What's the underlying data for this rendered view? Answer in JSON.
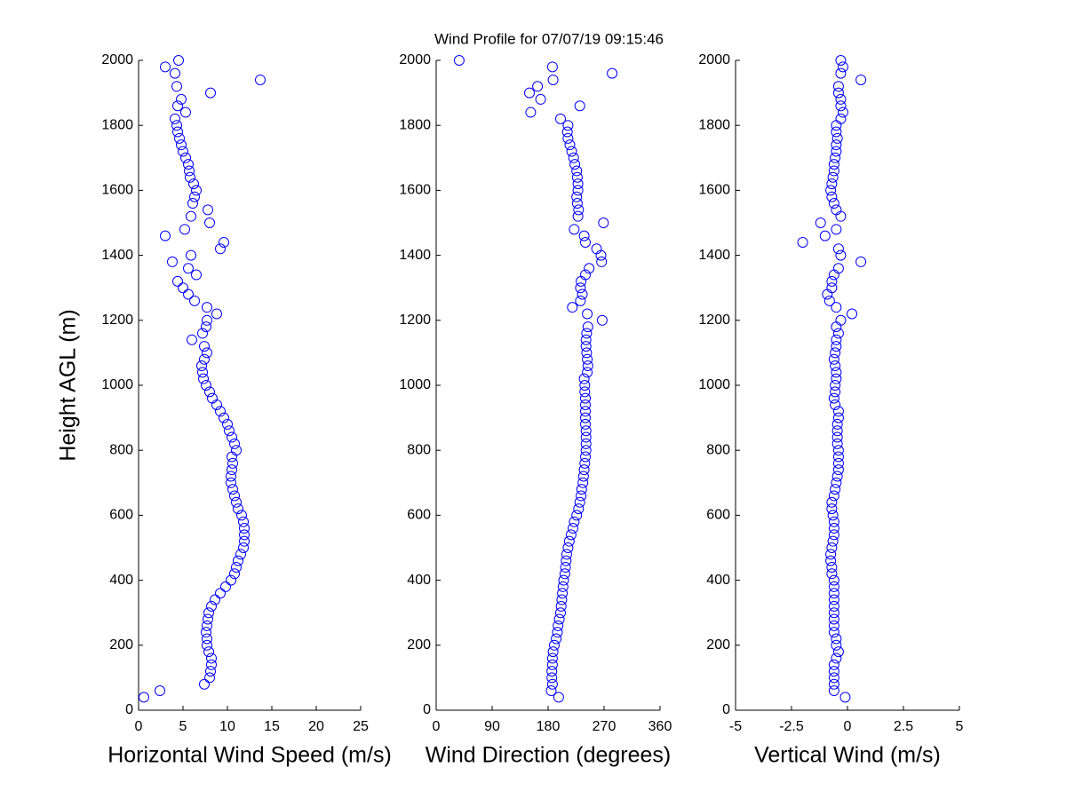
{
  "title": "Wind Profile for  07/07/19 09:15:46",
  "chart_data": [
    {
      "type": "scatter",
      "x_label": "Horizontal Wind Speed (m/s)",
      "y_label": "Height AGL (m)",
      "color": "#0000ff",
      "xlim": [
        0,
        25
      ],
      "xticks": [
        0,
        5,
        10,
        15,
        20,
        25
      ],
      "ylim": [
        0,
        2000
      ],
      "yticks": [
        0,
        200,
        400,
        600,
        800,
        1000,
        1200,
        1400,
        1600,
        1800,
        2000
      ],
      "x": [
        0.6,
        2.4,
        7.4,
        8.0,
        8.1,
        8.2,
        8.2,
        7.9,
        7.7,
        7.7,
        7.6,
        7.7,
        7.8,
        7.9,
        8.2,
        8.6,
        9.2,
        9.8,
        10.4,
        10.8,
        11.0,
        11.2,
        11.5,
        11.8,
        11.9,
        11.9,
        11.9,
        11.8,
        11.6,
        11.2,
        11.0,
        10.8,
        10.6,
        10.4,
        10.4,
        10.5,
        10.6,
        10.5,
        11.0,
        10.8,
        10.5,
        10.2,
        10.0,
        9.6,
        9.2,
        8.8,
        8.3,
        8.0,
        7.6,
        7.3,
        7.2,
        7.1,
        7.4,
        7.7,
        7.4,
        6.0,
        7.2,
        7.6,
        7.7,
        8.8,
        7.7,
        6.3,
        5.6,
        5.0,
        4.4,
        6.5,
        5.6,
        3.8,
        5.9,
        9.2,
        9.6,
        3.0,
        5.2,
        8.0,
        5.9,
        7.8,
        6.1,
        6.3,
        6.5,
        6.2,
        5.8,
        5.7,
        5.6,
        5.3,
        5.0,
        4.8,
        4.6,
        4.4,
        4.3,
        4.1,
        5.3,
        4.4,
        4.8,
        8.1,
        4.3,
        13.7,
        4.1,
        3.0,
        4.5
      ],
      "y": [
        40,
        60,
        80,
        100,
        120,
        140,
        160,
        180,
        200,
        220,
        240,
        260,
        280,
        300,
        320,
        340,
        360,
        380,
        400,
        420,
        440,
        460,
        480,
        500,
        520,
        540,
        560,
        580,
        600,
        620,
        640,
        660,
        680,
        700,
        720,
        740,
        760,
        780,
        800,
        820,
        840,
        860,
        880,
        900,
        920,
        940,
        960,
        980,
        1000,
        1020,
        1040,
        1060,
        1080,
        1100,
        1120,
        1140,
        1160,
        1180,
        1200,
        1220,
        1240,
        1260,
        1280,
        1300,
        1320,
        1340,
        1360,
        1380,
        1400,
        1420,
        1440,
        1460,
        1480,
        1500,
        1520,
        1540,
        1560,
        1580,
        1600,
        1620,
        1640,
        1660,
        1680,
        1700,
        1720,
        1740,
        1760,
        1780,
        1800,
        1820,
        1840,
        1860,
        1880,
        1900,
        1920,
        1940,
        1960,
        1980,
        2000
      ]
    },
    {
      "type": "scatter",
      "x_label": "Wind Direction (degrees)",
      "color": "#0000ff",
      "xlim": [
        0,
        360
      ],
      "xticks": [
        0,
        90,
        180,
        270,
        360
      ],
      "ylim": [
        0,
        2000
      ],
      "yticks": [
        0,
        200,
        400,
        600,
        800,
        1000,
        1200,
        1400,
        1600,
        1800,
        2000
      ],
      "x": [
        197,
        185,
        187,
        186,
        186,
        187,
        187,
        188,
        190,
        193,
        195,
        196,
        198,
        200,
        201,
        202,
        203,
        204,
        205,
        207,
        208,
        209,
        210,
        212,
        214,
        217,
        220,
        222,
        226,
        229,
        231,
        233,
        234,
        236,
        237,
        238,
        239,
        240,
        241,
        241,
        241,
        241,
        240,
        240,
        240,
        240,
        240,
        239,
        239,
        238,
        243,
        244,
        243,
        242,
        241,
        241,
        242,
        244,
        267,
        243,
        219,
        232,
        235,
        232,
        233,
        240,
        246,
        266,
        265,
        258,
        240,
        238,
        222,
        269,
        228,
        229,
        227,
        226,
        228,
        228,
        227,
        226,
        223,
        221,
        218,
        215,
        212,
        211,
        212,
        200,
        152,
        231,
        168,
        150,
        163,
        188,
        283,
        187,
        37
      ],
      "y": [
        40,
        60,
        80,
        100,
        120,
        140,
        160,
        180,
        200,
        220,
        240,
        260,
        280,
        300,
        320,
        340,
        360,
        380,
        400,
        420,
        440,
        460,
        480,
        500,
        520,
        540,
        560,
        580,
        600,
        620,
        640,
        660,
        680,
        700,
        720,
        740,
        760,
        780,
        800,
        820,
        840,
        860,
        880,
        900,
        920,
        940,
        960,
        980,
        1000,
        1020,
        1040,
        1060,
        1080,
        1100,
        1120,
        1140,
        1160,
        1180,
        1200,
        1220,
        1240,
        1260,
        1280,
        1300,
        1320,
        1340,
        1360,
        1380,
        1400,
        1420,
        1440,
        1460,
        1480,
        1500,
        1520,
        1540,
        1560,
        1580,
        1600,
        1620,
        1640,
        1660,
        1680,
        1700,
        1720,
        1740,
        1760,
        1780,
        1800,
        1820,
        1840,
        1860,
        1880,
        1900,
        1920,
        1940,
        1960,
        1980,
        2000
      ]
    },
    {
      "type": "scatter",
      "x_label": "Vertical Wind (m/s)",
      "color": "#0000ff",
      "xlim": [
        -5,
        5
      ],
      "xticks": [
        -5,
        -2.5,
        0,
        2.5,
        5
      ],
      "ylim": [
        0,
        2000
      ],
      "yticks": [
        0,
        200,
        400,
        600,
        800,
        1000,
        1200,
        1400,
        1600,
        1800,
        2000
      ],
      "x": [
        -0.1,
        -0.6,
        -0.6,
        -0.6,
        -0.6,
        -0.6,
        -0.5,
        -0.4,
        -0.5,
        -0.5,
        -0.6,
        -0.6,
        -0.6,
        -0.6,
        -0.6,
        -0.6,
        -0.6,
        -0.6,
        -0.6,
        -0.7,
        -0.7,
        -0.75,
        -0.75,
        -0.7,
        -0.65,
        -0.6,
        -0.6,
        -0.6,
        -0.65,
        -0.7,
        -0.7,
        -0.6,
        -0.55,
        -0.5,
        -0.45,
        -0.4,
        -0.4,
        -0.4,
        -0.4,
        -0.45,
        -0.45,
        -0.45,
        -0.45,
        -0.4,
        -0.4,
        -0.55,
        -0.6,
        -0.55,
        -0.55,
        -0.5,
        -0.5,
        -0.55,
        -0.6,
        -0.55,
        -0.5,
        -0.5,
        -0.4,
        -0.5,
        -0.3,
        0.2,
        -0.5,
        -0.8,
        -0.9,
        -0.7,
        -0.7,
        -0.6,
        -0.4,
        0.6,
        -0.3,
        -0.4,
        -2.0,
        -1.0,
        -0.5,
        -1.2,
        -0.3,
        -0.5,
        -0.6,
        -0.7,
        -0.75,
        -0.7,
        -0.65,
        -0.6,
        -0.6,
        -0.55,
        -0.5,
        -0.5,
        -0.45,
        -0.5,
        -0.5,
        -0.3,
        -0.2,
        -0.3,
        -0.3,
        -0.4,
        -0.4,
        0.6,
        -0.3,
        -0.2,
        -0.3
      ],
      "y": [
        40,
        60,
        80,
        100,
        120,
        140,
        160,
        180,
        200,
        220,
        240,
        260,
        280,
        300,
        320,
        340,
        360,
        380,
        400,
        420,
        440,
        460,
        480,
        500,
        520,
        540,
        560,
        580,
        600,
        620,
        640,
        660,
        680,
        700,
        720,
        740,
        760,
        780,
        800,
        820,
        840,
        860,
        880,
        900,
        920,
        940,
        960,
        980,
        1000,
        1020,
        1040,
        1060,
        1080,
        1100,
        1120,
        1140,
        1160,
        1180,
        1200,
        1220,
        1240,
        1260,
        1280,
        1300,
        1320,
        1340,
        1360,
        1380,
        1400,
        1420,
        1440,
        1460,
        1480,
        1500,
        1520,
        1540,
        1560,
        1580,
        1600,
        1620,
        1640,
        1660,
        1680,
        1700,
        1720,
        1740,
        1760,
        1780,
        1800,
        1820,
        1840,
        1860,
        1880,
        1900,
        1920,
        1940,
        1960,
        1980,
        2000
      ]
    }
  ]
}
